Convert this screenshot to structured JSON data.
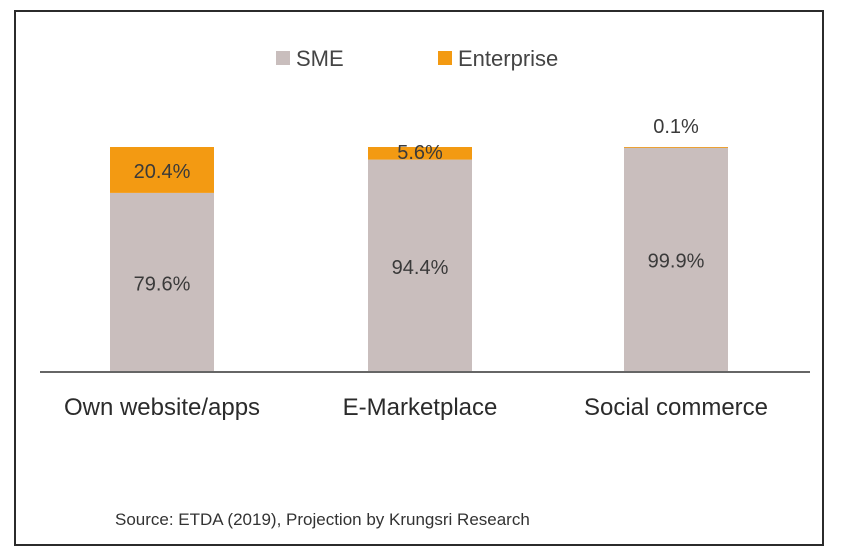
{
  "chart_data": {
    "type": "bar",
    "stacked": true,
    "percent": true,
    "categories": [
      "Own website/apps",
      "E-Marketplace",
      "Social commerce"
    ],
    "series": [
      {
        "name": "SME",
        "color": "#c9bebd",
        "values": [
          79.6,
          94.4,
          99.9
        ],
        "labels": [
          "79.6%",
          "94.4%",
          "99.9%"
        ]
      },
      {
        "name": "Enterprise",
        "color": "#f39a12",
        "values": [
          20.4,
          5.6,
          0.1
        ],
        "labels": [
          "20.4%",
          "5.6%",
          "0.1%"
        ]
      }
    ],
    "ylim": [
      0,
      100
    ],
    "grid": false,
    "legend": "top-center"
  },
  "source": "Source: ETDA (2019), Projection by Krungsri Research"
}
